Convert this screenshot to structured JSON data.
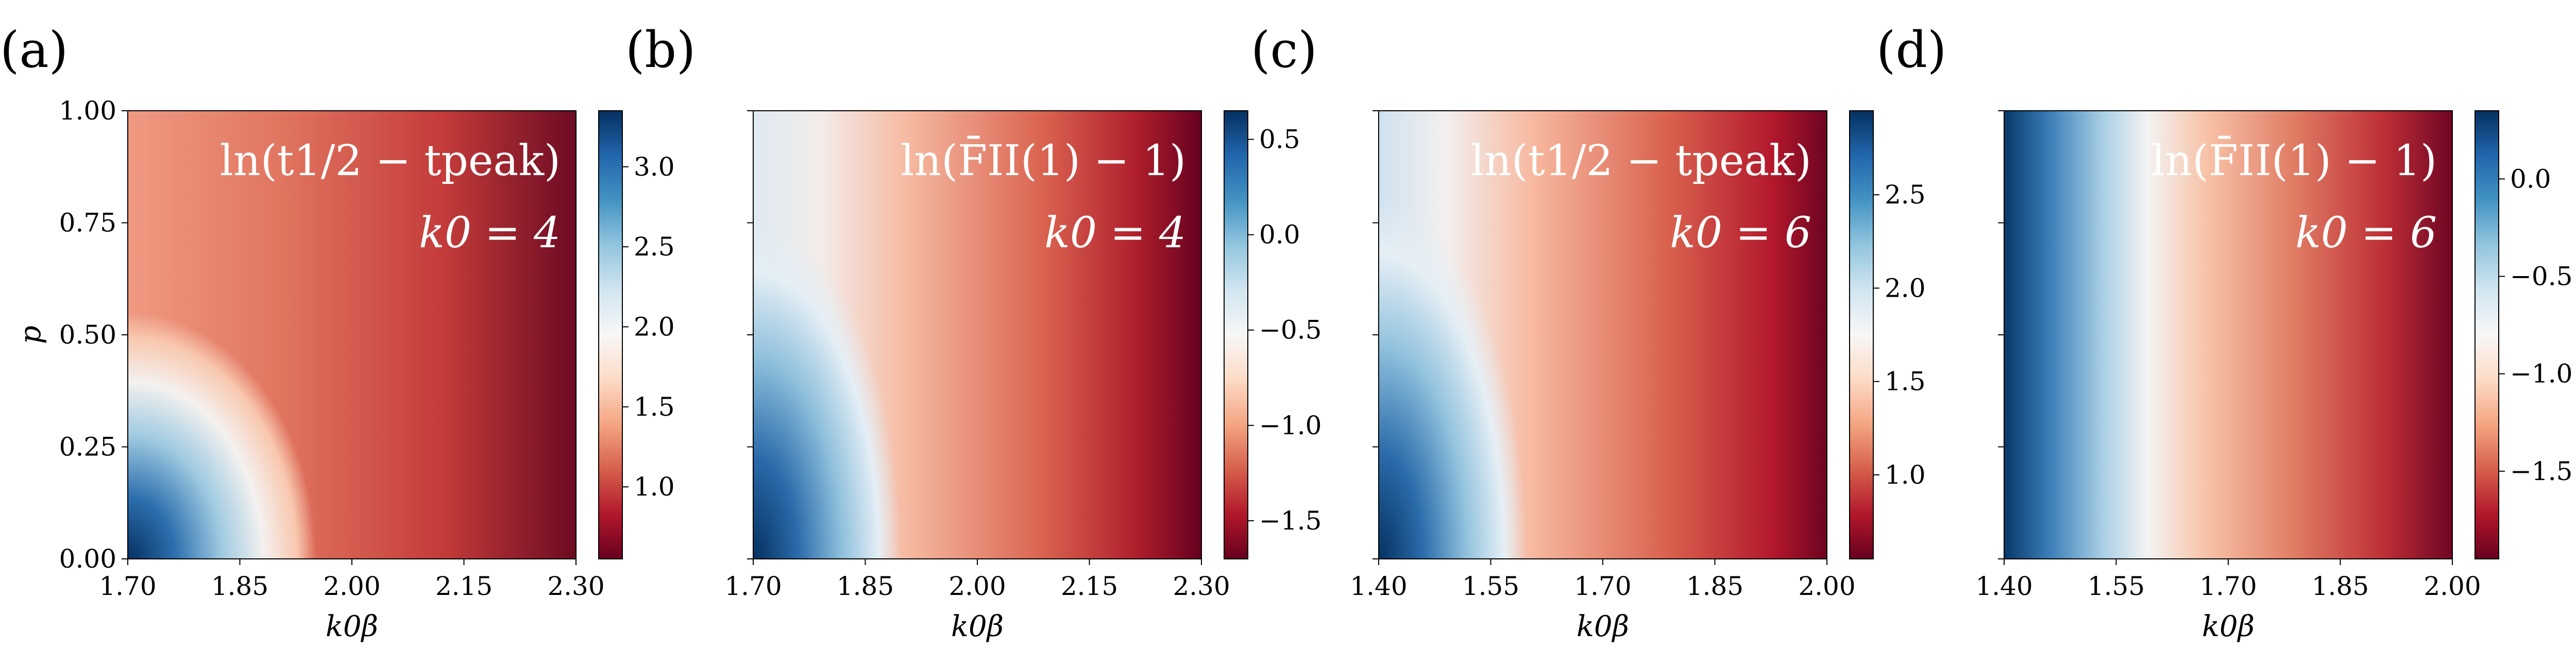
{
  "chart_data": [
    {
      "type": "heatmap",
      "panel_label": "(a)",
      "annotation_quantity": "ln(t1/2 − tpeak)",
      "annotation_param": "k0 = 4",
      "xlabel": "k0β",
      "ylabel": "p",
      "xlim": [
        1.7,
        2.3
      ],
      "ylim": [
        0.0,
        1.0
      ],
      "xticks": [
        "1.70",
        "1.85",
        "2.00",
        "2.15",
        "2.30"
      ],
      "yticks": [
        "0.00",
        "0.25",
        "0.50",
        "0.75",
        "1.00"
      ],
      "colorbar_range": [
        0.55,
        3.35
      ],
      "colorbar_ticks": [
        "1.0",
        "1.5",
        "2.0",
        "2.5",
        "3.0"
      ],
      "colormap": "RdBu"
    },
    {
      "type": "heatmap",
      "panel_label": "(b)",
      "annotation_quantity": "ln(F̄II(1) − 1)",
      "annotation_param": "k0 = 4",
      "xlabel": "k0β",
      "ylabel": "",
      "xlim": [
        1.7,
        2.3
      ],
      "ylim": [
        0.0,
        1.0
      ],
      "xticks": [
        "1.70",
        "1.85",
        "2.00",
        "2.15",
        "2.30"
      ],
      "yticks": [],
      "colorbar_range": [
        -1.7,
        0.65
      ],
      "colorbar_ticks": [
        "−1.5",
        "−1.0",
        "−0.5",
        "0.0",
        "0.5"
      ],
      "colormap": "RdBu"
    },
    {
      "type": "heatmap",
      "panel_label": "(c)",
      "annotation_quantity": "ln(t1/2 − tpeak)",
      "annotation_param": "k0 = 6",
      "xlabel": "k0β",
      "ylabel": "",
      "xlim": [
        1.4,
        2.0
      ],
      "ylim": [
        0.0,
        1.0
      ],
      "xticks": [
        "1.40",
        "1.55",
        "1.70",
        "1.85",
        "2.00"
      ],
      "yticks": [],
      "colorbar_range": [
        0.55,
        2.95
      ],
      "colorbar_ticks": [
        "1.0",
        "1.5",
        "2.0",
        "2.5"
      ],
      "colormap": "RdBu"
    },
    {
      "type": "heatmap",
      "panel_label": "(d)",
      "annotation_quantity": "ln(F̄II(1) − 1)",
      "annotation_param": "k0 = 6",
      "xlabel": "k0β",
      "ylabel": "",
      "xlim": [
        1.4,
        2.0
      ],
      "ylim": [
        0.0,
        1.0
      ],
      "xticks": [
        "1.40",
        "1.55",
        "1.70",
        "1.85",
        "2.00"
      ],
      "yticks": [],
      "colorbar_range": [
        -1.95,
        0.35
      ],
      "colorbar_ticks": [
        "−1.5",
        "−1.0",
        "−0.5",
        "0.0"
      ],
      "colormap": "RdBu"
    }
  ]
}
